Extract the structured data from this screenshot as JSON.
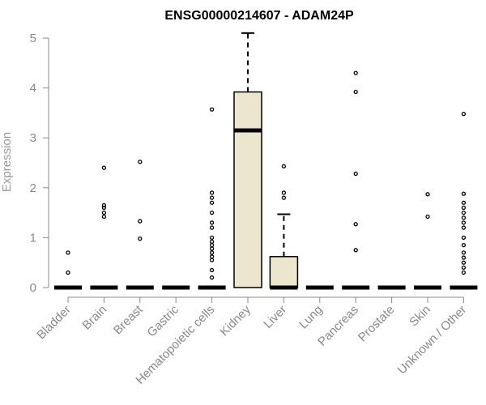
{
  "chart_data": {
    "type": "box",
    "title": "ENSG00000214607 - ADAM24P",
    "xlabel": "",
    "ylabel": "Expression",
    "ylim": [
      0,
      5
    ],
    "yticks": [
      0,
      1,
      2,
      3,
      4,
      5
    ],
    "grid": false,
    "legend": "none",
    "box_fill": "#ede6cf",
    "categories": [
      "Bladder",
      "Brain",
      "Breast",
      "Gastric",
      "Hematopoietic cells",
      "Kidney",
      "Liver",
      "Lung",
      "Pancreas",
      "Prostate",
      "Skin",
      "Unknown / Other"
    ],
    "boxes": [
      {
        "category": "Bladder",
        "q1": 0,
        "median": 0,
        "q3": 0,
        "whisker_low": 0,
        "whisker_high": 0,
        "outliers": [
          0.3,
          0.7
        ]
      },
      {
        "category": "Brain",
        "q1": 0,
        "median": 0,
        "q3": 0,
        "whisker_low": 0,
        "whisker_high": 0,
        "outliers": [
          1.42,
          1.5,
          1.6,
          1.65,
          2.4
        ]
      },
      {
        "category": "Breast",
        "q1": 0,
        "median": 0,
        "q3": 0,
        "whisker_low": 0,
        "whisker_high": 0,
        "outliers": [
          0.98,
          1.33,
          2.52
        ]
      },
      {
        "category": "Gastric",
        "q1": 0,
        "median": 0,
        "q3": 0,
        "whisker_low": 0,
        "whisker_high": 0,
        "outliers": []
      },
      {
        "category": "Hematopoietic cells",
        "q1": 0,
        "median": 0,
        "q3": 0,
        "whisker_low": 0,
        "whisker_high": 0,
        "outliers": [
          0.2,
          0.35,
          0.55,
          0.62,
          0.7,
          0.78,
          0.85,
          0.92,
          1.0,
          1.2,
          1.3,
          1.5,
          1.7,
          1.8,
          1.9,
          3.57
        ]
      },
      {
        "category": "Kidney",
        "q1": 0,
        "median": 3.15,
        "q3": 3.92,
        "whisker_low": 0,
        "whisker_high": 5.1,
        "outliers": []
      },
      {
        "category": "Liver",
        "q1": 0,
        "median": 0,
        "q3": 0.62,
        "whisker_low": 0,
        "whisker_high": 1.47,
        "outliers": [
          1.8,
          1.9,
          2.43
        ]
      },
      {
        "category": "Lung",
        "q1": 0,
        "median": 0,
        "q3": 0,
        "whisker_low": 0,
        "whisker_high": 0,
        "outliers": []
      },
      {
        "category": "Pancreas",
        "q1": 0,
        "median": 0,
        "q3": 0,
        "whisker_low": 0,
        "whisker_high": 0,
        "outliers": [
          0.75,
          1.27,
          2.28,
          3.92,
          4.3
        ]
      },
      {
        "category": "Prostate",
        "q1": 0,
        "median": 0,
        "q3": 0,
        "whisker_low": 0,
        "whisker_high": 0,
        "outliers": []
      },
      {
        "category": "Skin",
        "q1": 0,
        "median": 0,
        "q3": 0,
        "whisker_low": 0,
        "whisker_high": 0,
        "outliers": [
          1.42,
          1.87
        ]
      },
      {
        "category": "Unknown / Other",
        "q1": 0,
        "median": 0,
        "q3": 0,
        "whisker_low": 0,
        "whisker_high": 0,
        "outliers": [
          0.3,
          0.4,
          0.5,
          0.6,
          0.7,
          0.85,
          1.0,
          1.2,
          1.3,
          1.4,
          1.5,
          1.6,
          1.7,
          1.88,
          3.48
        ]
      }
    ]
  }
}
